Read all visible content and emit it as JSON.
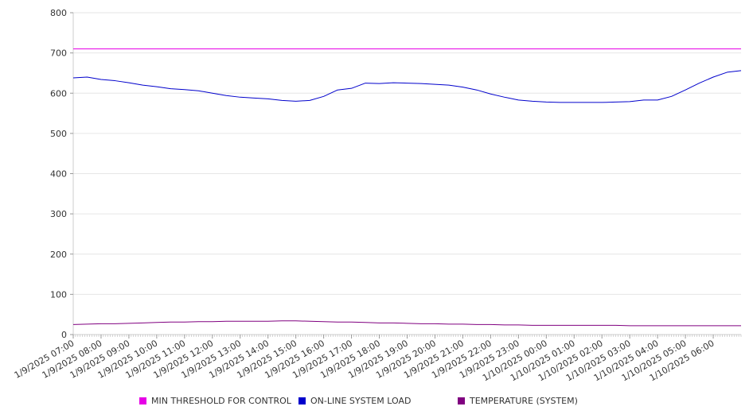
{
  "chart_data": {
    "type": "line",
    "title": "",
    "xlabel": "",
    "ylabel": "",
    "ylim": [
      0,
      800
    ],
    "yticks": [
      0,
      100,
      200,
      300,
      400,
      500,
      600,
      700,
      800
    ],
    "grid": "horizontal",
    "legend_position": "bottom",
    "x_tick_labels": [
      "1/9/2025 07:00",
      "1/9/2025 08:00",
      "1/9/2025 09:00",
      "1/9/2025 10:00",
      "1/9/2025 11:00",
      "1/9/2025 12:00",
      "1/9/2025 13:00",
      "1/9/2025 14:00",
      "1/9/2025 15:00",
      "1/9/2025 16:00",
      "1/9/2025 17:00",
      "1/9/2025 18:00",
      "1/9/2025 19:00",
      "1/9/2025 20:00",
      "1/9/2025 21:00",
      "1/9/2025 22:00",
      "1/9/2025 23:00",
      "1/10/2025 00:00",
      "1/10/2025 01:00",
      "1/10/2025 02:00",
      "1/10/2025 03:00",
      "1/10/2025 04:00",
      "1/10/2025 05:00",
      "1/10/2025 06:00"
    ],
    "x": [
      "1/9/2025 07:00",
      "1/9/2025 07:30",
      "1/9/2025 08:00",
      "1/9/2025 08:30",
      "1/9/2025 09:00",
      "1/9/2025 09:30",
      "1/9/2025 10:00",
      "1/9/2025 10:30",
      "1/9/2025 11:00",
      "1/9/2025 11:30",
      "1/9/2025 12:00",
      "1/9/2025 12:30",
      "1/9/2025 13:00",
      "1/9/2025 13:30",
      "1/9/2025 14:00",
      "1/9/2025 14:30",
      "1/9/2025 15:00",
      "1/9/2025 15:30",
      "1/9/2025 16:00",
      "1/9/2025 16:30",
      "1/9/2025 17:00",
      "1/9/2025 17:30",
      "1/9/2025 18:00",
      "1/9/2025 18:30",
      "1/9/2025 19:00",
      "1/9/2025 19:30",
      "1/9/2025 20:00",
      "1/9/2025 20:30",
      "1/9/2025 21:00",
      "1/9/2025 21:30",
      "1/9/2025 22:00",
      "1/9/2025 22:30",
      "1/9/2025 23:00",
      "1/9/2025 23:30",
      "1/10/2025 00:00",
      "1/10/2025 00:30",
      "1/10/2025 01:00",
      "1/10/2025 01:30",
      "1/10/2025 02:00",
      "1/10/2025 02:30",
      "1/10/2025 03:00",
      "1/10/2025 03:30",
      "1/10/2025 04:00",
      "1/10/2025 04:30",
      "1/10/2025 05:00",
      "1/10/2025 05:30",
      "1/10/2025 06:00",
      "1/10/2025 06:30",
      "1/10/2025 07:00"
    ],
    "series": [
      {
        "name": "MIN THRESHOLD FOR CONTROL",
        "color": "#e600e6",
        "values": [
          710,
          710,
          710,
          710,
          710,
          710,
          710,
          710,
          710,
          710,
          710,
          710,
          710,
          710,
          710,
          710,
          710,
          710,
          710,
          710,
          710,
          710,
          710,
          710,
          710,
          710,
          710,
          710,
          710,
          710,
          710,
          710,
          710,
          710,
          710,
          710,
          710,
          710,
          710,
          710,
          710,
          710,
          710,
          710,
          710,
          710,
          710,
          710,
          710
        ]
      },
      {
        "name": "ON-LINE SYSTEM LOAD",
        "color": "#0000cc",
        "values": [
          638,
          640,
          634,
          631,
          626,
          620,
          616,
          611,
          609,
          606,
          600,
          594,
          590,
          588,
          586,
          582,
          580,
          582,
          592,
          608,
          612,
          625,
          624,
          626,
          625,
          624,
          622,
          620,
          615,
          608,
          598,
          590,
          583,
          580,
          578,
          577,
          577,
          577,
          577,
          578,
          579,
          583,
          583,
          592,
          608,
          625,
          640,
          652,
          656
        ]
      },
      {
        "name": "TEMPERATURE (SYSTEM)",
        "color": "#800080",
        "values": [
          25,
          26,
          27,
          27,
          28,
          29,
          30,
          31,
          31,
          32,
          32,
          33,
          33,
          33,
          33,
          34,
          34,
          33,
          32,
          31,
          31,
          30,
          29,
          29,
          28,
          27,
          27,
          26,
          26,
          25,
          25,
          24,
          24,
          23,
          23,
          23,
          23,
          23,
          23,
          23,
          22,
          22,
          22,
          22,
          22,
          22,
          22,
          22,
          22
        ]
      }
    ]
  }
}
